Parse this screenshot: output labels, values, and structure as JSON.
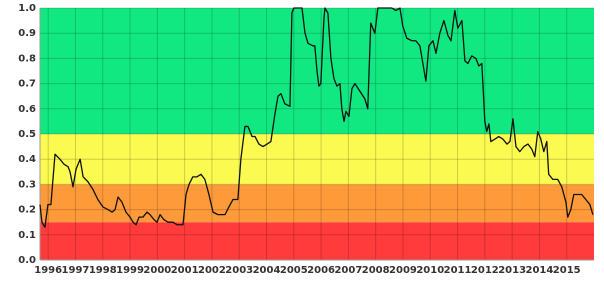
{
  "chart_data": {
    "type": "line",
    "bands": [
      {
        "from": 0,
        "to": 0.15,
        "color": "#ff3b3b"
      },
      {
        "from": 0.15,
        "to": 0.3,
        "color": "#ff9a3a"
      },
      {
        "from": 0.3,
        "to": 0.5,
        "color": "#fafa50"
      },
      {
        "from": 0.5,
        "to": 1.0,
        "color": "#12e882"
      }
    ],
    "x": [
      1995.7,
      1995.77,
      1995.88,
      1995.99,
      1996.1,
      1996.25,
      1996.43,
      1996.58,
      1996.73,
      1996.8,
      1996.91,
      1997.02,
      1997.17,
      1997.28,
      1997.46,
      1997.64,
      1997.82,
      1998.01,
      1998.19,
      1998.34,
      1998.45,
      1998.56,
      1998.7,
      1998.85,
      1999.0,
      1999.11,
      1999.22,
      1999.33,
      1999.47,
      1999.62,
      1999.73,
      1999.88,
      1999.99,
      2000.1,
      2000.24,
      2000.39,
      2000.57,
      2000.72,
      2000.94,
      2001.05,
      2001.16,
      2001.3,
      2001.45,
      2001.6,
      2001.74,
      2001.89,
      2002.04,
      2002.22,
      2002.48,
      2002.62,
      2002.77,
      2002.95,
      2003.06,
      2003.21,
      2003.32,
      2003.47,
      2003.58,
      2003.72,
      2003.87,
      2004.02,
      2004.16,
      2004.31,
      2004.42,
      2004.53,
      2004.67,
      2004.86,
      2004.93,
      2005.0,
      2005.3,
      2005.41,
      2005.52,
      2005.7,
      2005.77,
      2005.85,
      2005.92,
      2005.99,
      2006.1,
      2006.14,
      2006.25,
      2006.36,
      2006.47,
      2006.58,
      2006.69,
      2006.76,
      2006.84,
      2006.91,
      2007.02,
      2007.13,
      2007.24,
      2007.42,
      2007.6,
      2007.71,
      2007.82,
      2007.97,
      2008.08,
      2008.34,
      2008.59,
      2008.74,
      2008.89,
      2008.99,
      2009.14,
      2009.33,
      2009.47,
      2009.62,
      2009.73,
      2009.84,
      2009.95,
      2010.1,
      2010.21,
      2010.35,
      2010.5,
      2010.65,
      2010.76,
      2010.9,
      2011.01,
      2011.16,
      2011.27,
      2011.38,
      2011.52,
      2011.67,
      2011.78,
      2011.89,
      2012.0,
      2012.07,
      2012.15,
      2012.22,
      2012.37,
      2012.51,
      2012.66,
      2012.81,
      2012.92,
      2013.03,
      2013.14,
      2013.28,
      2013.43,
      2013.58,
      2013.72,
      2013.83,
      2013.94,
      2014.05,
      2014.16,
      2014.27,
      2014.34,
      2014.49,
      2014.67,
      2014.82,
      2014.97,
      2015.04,
      2015.15,
      2015.26,
      2015.41,
      2015.55,
      2015.7,
      2015.85,
      2015.96
    ],
    "series": [
      {
        "color": "#111111",
        "values": [
          0.22,
          0.15,
          0.13,
          0.22,
          0.22,
          0.42,
          0.4,
          0.38,
          0.37,
          0.35,
          0.29,
          0.36,
          0.4,
          0.33,
          0.31,
          0.28,
          0.24,
          0.21,
          0.2,
          0.19,
          0.2,
          0.25,
          0.23,
          0.19,
          0.17,
          0.15,
          0.14,
          0.17,
          0.17,
          0.19,
          0.18,
          0.16,
          0.15,
          0.18,
          0.16,
          0.15,
          0.15,
          0.14,
          0.14,
          0.26,
          0.3,
          0.33,
          0.33,
          0.34,
          0.32,
          0.26,
          0.19,
          0.18,
          0.18,
          0.21,
          0.24,
          0.24,
          0.4,
          0.53,
          0.53,
          0.49,
          0.49,
          0.46,
          0.45,
          0.46,
          0.47,
          0.58,
          0.65,
          0.66,
          0.62,
          0.61,
          0.98,
          1.0,
          1.0,
          0.9,
          0.86,
          0.85,
          0.85,
          0.75,
          0.69,
          0.7,
          0.95,
          1.0,
          0.98,
          0.8,
          0.72,
          0.69,
          0.7,
          0.6,
          0.55,
          0.59,
          0.57,
          0.68,
          0.7,
          0.67,
          0.64,
          0.6,
          0.94,
          0.9,
          1.0,
          1.0,
          1.0,
          0.99,
          1.0,
          0.93,
          0.88,
          0.87,
          0.87,
          0.85,
          0.78,
          0.71,
          0.85,
          0.87,
          0.82,
          0.9,
          0.95,
          0.89,
          0.87,
          0.99,
          0.92,
          0.95,
          0.79,
          0.78,
          0.81,
          0.8,
          0.77,
          0.78,
          0.55,
          0.51,
          0.54,
          0.47,
          0.48,
          0.49,
          0.48,
          0.46,
          0.47,
          0.56,
          0.45,
          0.43,
          0.45,
          0.46,
          0.44,
          0.41,
          0.51,
          0.48,
          0.43,
          0.47,
          0.34,
          0.32,
          0.32,
          0.29,
          0.23,
          0.17,
          0.2,
          0.26,
          0.26,
          0.26,
          0.24,
          0.22,
          0.18
        ]
      }
    ],
    "xlim": [
      1995.7,
      2016.0
    ],
    "xticks": [
      1996,
      1997,
      1998,
      1999,
      2000,
      2001,
      2002,
      2003,
      2004,
      2005,
      2006,
      2007,
      2008,
      2009,
      2010,
      2011,
      2012,
      2013,
      2014,
      2015
    ],
    "ylim": [
      0,
      1.0
    ],
    "yticks": [
      {
        "value": 0,
        "label": "0.0"
      },
      0.1,
      0.2,
      0.3,
      0.4,
      0.5,
      0.6,
      0.7,
      0.8,
      0.9,
      {
        "value": 1.0,
        "label": "1.0"
      }
    ],
    "grid": true
  }
}
